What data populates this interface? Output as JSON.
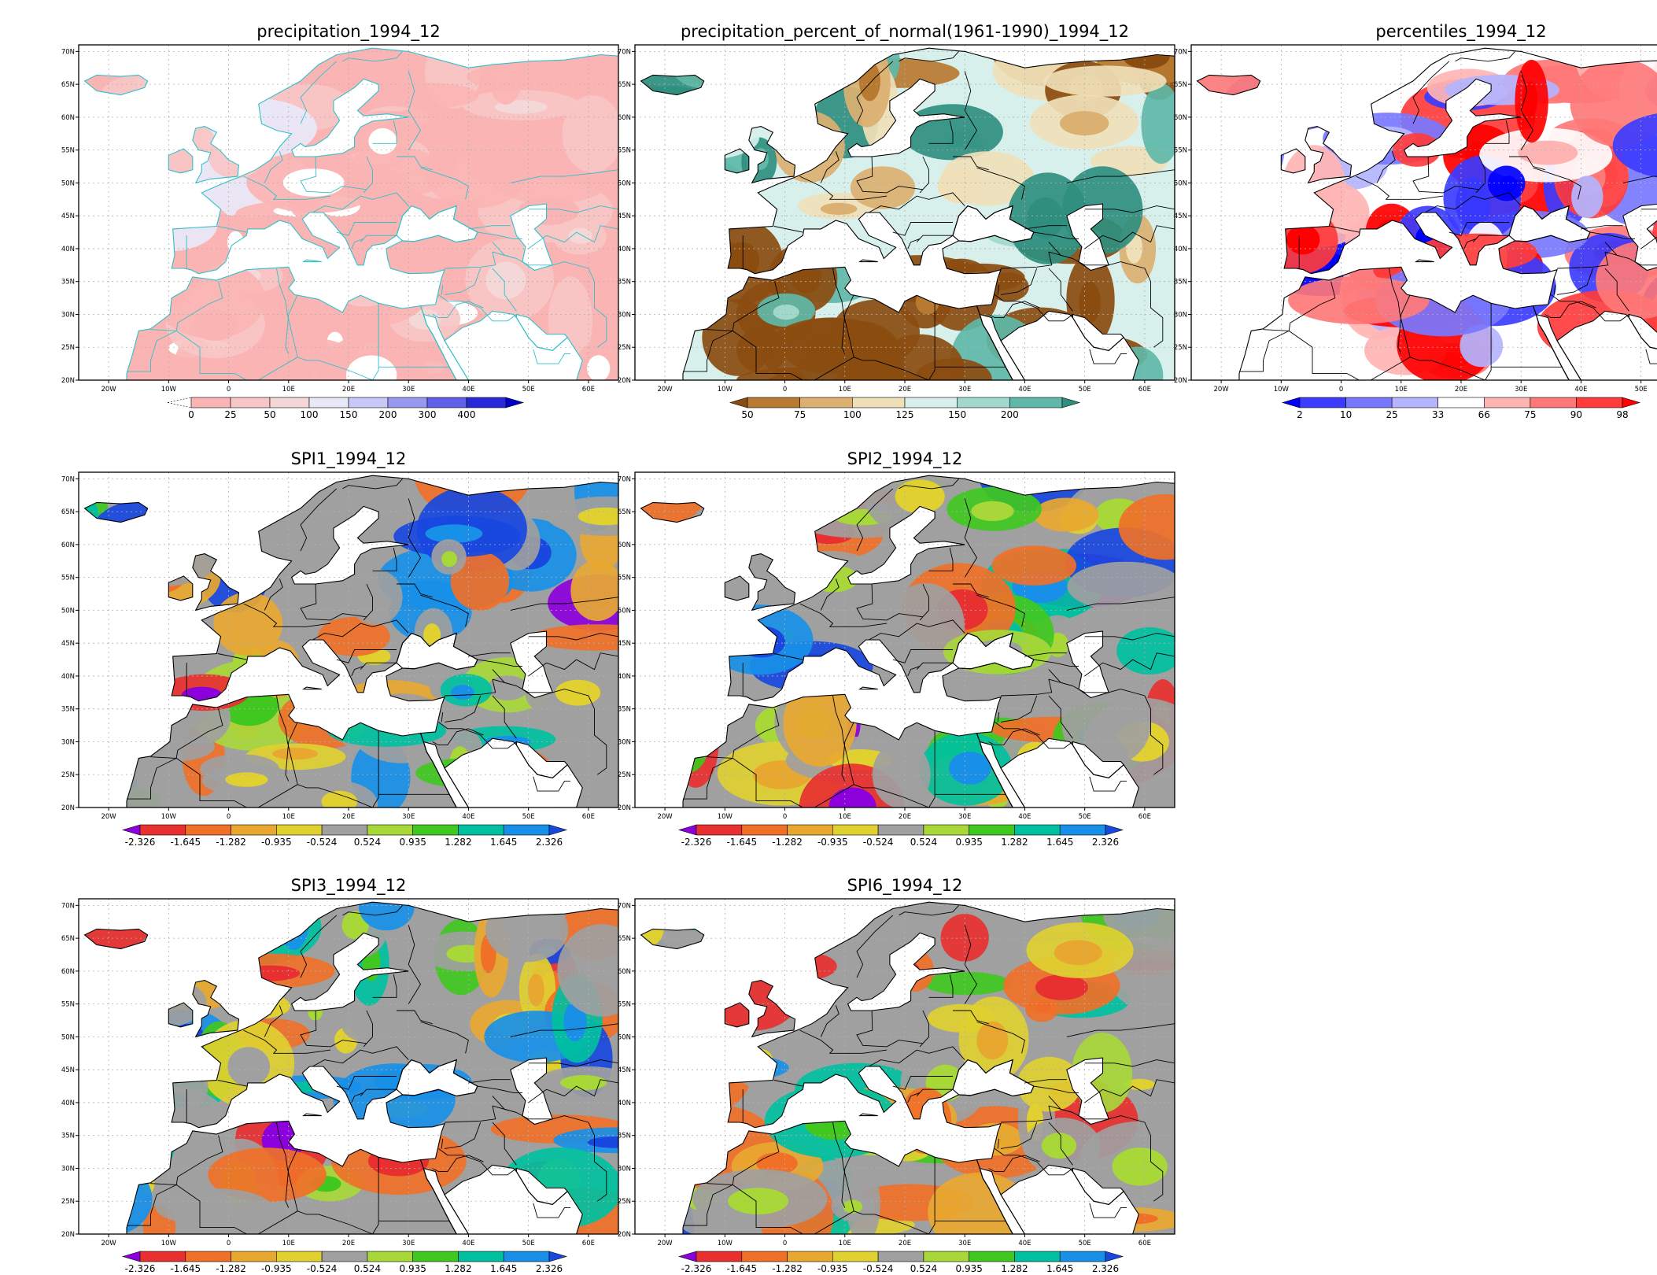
{
  "lon_ticks": [
    "20W",
    "10W",
    "0",
    "10E",
    "20E",
    "30E",
    "40E",
    "50E",
    "60E"
  ],
  "lat_ticks": [
    "70N",
    "65N",
    "60N",
    "55N",
    "50N",
    "45N",
    "40N",
    "35N",
    "30N",
    "25N",
    "20N"
  ],
  "palettes": {
    "precip": [
      "#ffffff",
      "#fbb4b4",
      "#f8c6c6",
      "#f4d8d8",
      "#e8e8f8",
      "#c8c8f8",
      "#9898f0",
      "#6060e8",
      "#2828d8",
      "#0000c8"
    ],
    "percent": [
      "#8b4c10",
      "#b87a30",
      "#dcb070",
      "#f0e0b8",
      "#d8f0ec",
      "#a0d8cc",
      "#60b8a8",
      "#2f8f7f"
    ],
    "pct": [
      "#0000ff",
      "#3c3cff",
      "#7878ff",
      "#b4b4ff",
      "#ffffff",
      "#ffb4b4",
      "#ff7878",
      "#ff3c3c",
      "#ff0000"
    ],
    "spi": [
      "#8c00dc",
      "#e83030",
      "#f07028",
      "#e8a830",
      "#e0d030",
      "#a0a0a0",
      "#a8d838",
      "#40c820",
      "#00c0a0",
      "#1890e8",
      "#1848e0"
    ]
  },
  "panels": [
    {
      "id": "precip",
      "title": "precipitation_1994_12",
      "legend_labels": [
        "0",
        "25",
        "50",
        "100",
        "150",
        "200",
        "300",
        "400"
      ],
      "legend_colors": [
        "#fbb4b4",
        "#f8c6c6",
        "#f4d8d8",
        "#e8e8f8",
        "#c8c8f8",
        "#9898f0",
        "#6060e8",
        "#2828d8"
      ],
      "legend_left_arrow": false,
      "legend_right_arrow": true,
      "legend_right_color": "#0000c8"
    },
    {
      "id": "percent",
      "title": "precipitation_percent_of_normal(1961-1990)_1994_12",
      "legend_labels": [
        "50",
        "75",
        "100",
        "125",
        "150",
        "200"
      ],
      "legend_colors": [
        "#b87a30",
        "#dcb070",
        "#f0e0b8",
        "#d8f0ec",
        "#a0d8cc",
        "#60b8a8"
      ],
      "legend_left_arrow": true,
      "legend_left_color": "#8b4c10",
      "legend_right_arrow": true,
      "legend_right_color": "#2f8f7f"
    },
    {
      "id": "pct",
      "title": "percentiles_1994_12",
      "legend_labels": [
        "2",
        "10",
        "25",
        "33",
        "66",
        "75",
        "90",
        "98"
      ],
      "legend_colors": [
        "#3c3cff",
        "#7878ff",
        "#b4b4ff",
        "#ffffff",
        "#ffb4b4",
        "#ff7878",
        "#ff3c3c"
      ],
      "legend_left_arrow": true,
      "legend_left_color": "#0000ff",
      "legend_right_arrow": true,
      "legend_right_color": "#ff0000"
    },
    {
      "id": "spi1",
      "title": "SPI1_1994_12",
      "legend_labels": [
        "-2.326",
        "-1.645",
        "-1.282",
        "-0.935",
        "-0.524",
        "0.524",
        "0.935",
        "1.282",
        "1.645",
        "2.326"
      ],
      "legend_colors": [
        "#e83030",
        "#f07028",
        "#e8a830",
        "#e0d030",
        "#a0a0a0",
        "#a8d838",
        "#40c820",
        "#00c0a0",
        "#1890e8"
      ],
      "legend_left_arrow": true,
      "legend_left_color": "#8c00dc",
      "legend_right_arrow": true,
      "legend_right_color": "#1848e0"
    },
    {
      "id": "spi2",
      "title": "SPI2_1994_12",
      "legend_labels": [
        "-2.326",
        "-1.645",
        "-1.282",
        "-0.935",
        "-0.524",
        "0.524",
        "0.935",
        "1.282",
        "1.645",
        "2.326"
      ],
      "legend_colors": [
        "#e83030",
        "#f07028",
        "#e8a830",
        "#e0d030",
        "#a0a0a0",
        "#a8d838",
        "#40c820",
        "#00c0a0",
        "#1890e8"
      ],
      "legend_left_arrow": true,
      "legend_left_color": "#8c00dc",
      "legend_right_arrow": true,
      "legend_right_color": "#1848e0"
    },
    {
      "id": "spi3",
      "title": "SPI3_1994_12",
      "legend_labels": [
        "-2.326",
        "-1.645",
        "-1.282",
        "-0.935",
        "-0.524",
        "0.524",
        "0.935",
        "1.282",
        "1.645",
        "2.326"
      ],
      "legend_colors": [
        "#e83030",
        "#f07028",
        "#e8a830",
        "#e0d030",
        "#a0a0a0",
        "#a8d838",
        "#40c820",
        "#00c0a0",
        "#1890e8"
      ],
      "legend_left_arrow": true,
      "legend_left_color": "#8c00dc",
      "legend_right_arrow": true,
      "legend_right_color": "#1848e0"
    },
    {
      "id": "spi6",
      "title": "SPI6_1994_12",
      "legend_labels": [
        "-2.326",
        "-1.645",
        "-1.282",
        "-0.935",
        "-0.524",
        "0.524",
        "0.935",
        "1.282",
        "1.645",
        "2.326"
      ],
      "legend_colors": [
        "#e83030",
        "#f07028",
        "#e8a830",
        "#e0d030",
        "#a0a0a0",
        "#a8d838",
        "#40c820",
        "#00c0a0",
        "#1890e8"
      ],
      "legend_left_arrow": true,
      "legend_left_color": "#8c00dc",
      "legend_right_arrow": true,
      "legend_right_color": "#1848e0"
    }
  ]
}
